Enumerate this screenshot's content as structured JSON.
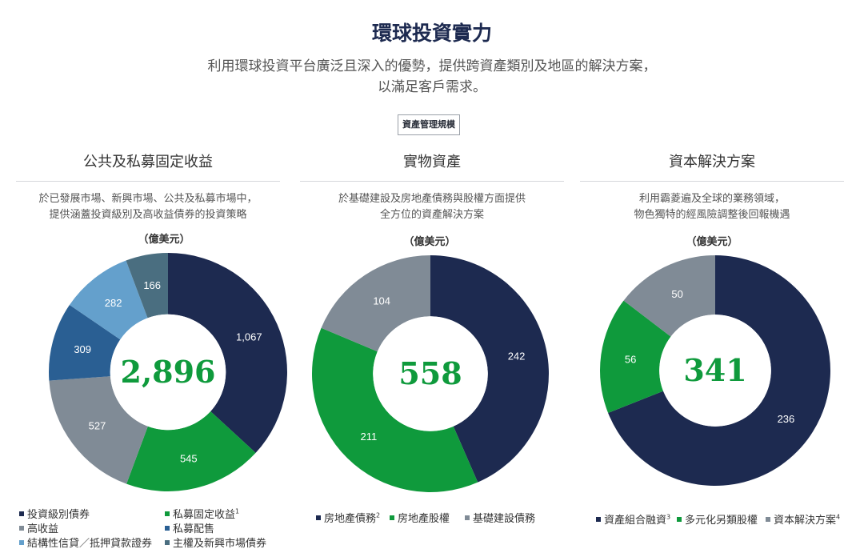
{
  "header": {
    "title": "環球投資實力",
    "subtitle_line1": "利用環球投資平台廣泛且深入的優勢，提供跨資產類別及地區的解決方案，",
    "subtitle_line2": "以滿足客戶需求。",
    "aum_label": "資產管理規模"
  },
  "columns": [
    {
      "title": "公共及私募固定收益",
      "desc_line1": "於已發展市場、新興市場、公共及私募市場中，",
      "desc_line2": "提供涵蓋投資級別及高收益債券的投資策略",
      "unit": "（億美元）"
    },
    {
      "title": "實物資產",
      "desc_line1": "於基礎建設及房地產債務與股權方面提供",
      "desc_line2": "全方位的資產解決方案",
      "unit": "（億美元）"
    },
    {
      "title": "資本解決方案",
      "desc_line1": "利用霸菱遍及全球的業務領域，",
      "desc_line2": "物色獨特的經風險調整後回報機遇",
      "unit": "（億美元）"
    }
  ],
  "chart_data": [
    {
      "type": "pie",
      "donut": true,
      "total_label": "2,896",
      "categories": [
        "投資級別債券",
        "私募固定收益",
        "高收益",
        "私募配售",
        "結構性信貸／抵押貸款證券",
        "主權及新興市場債券"
      ],
      "sup": [
        "",
        "1",
        "",
        "",
        "",
        ""
      ],
      "values": [
        1067,
        545,
        527,
        309,
        282,
        166
      ],
      "value_labels": [
        "1,067",
        "545",
        "527",
        "309",
        "282",
        "166"
      ],
      "colors": [
        "#1d2a50",
        "#0f9a3c",
        "#808b96",
        "#2a5f93",
        "#64a0cc",
        "#4a6e80"
      ]
    },
    {
      "type": "pie",
      "donut": true,
      "total_label": "558",
      "categories": [
        "房地產債務",
        "房地產股權",
        "基礎建設債務"
      ],
      "sup": [
        "2",
        "",
        ""
      ],
      "values": [
        242,
        211,
        104
      ],
      "value_labels": [
        "242",
        "211",
        "104"
      ],
      "colors": [
        "#1d2a50",
        "#0f9a3c",
        "#808b96"
      ]
    },
    {
      "type": "pie",
      "donut": true,
      "total_label": "341",
      "categories": [
        "資產組合融資",
        "多元化另類股權",
        "資本解決方案"
      ],
      "sup": [
        "3",
        "",
        "4"
      ],
      "values": [
        236,
        56,
        50
      ],
      "value_labels": [
        "236",
        "56",
        "50"
      ],
      "colors": [
        "#1d2a50",
        "#0f9a3c",
        "#808b96"
      ]
    }
  ]
}
